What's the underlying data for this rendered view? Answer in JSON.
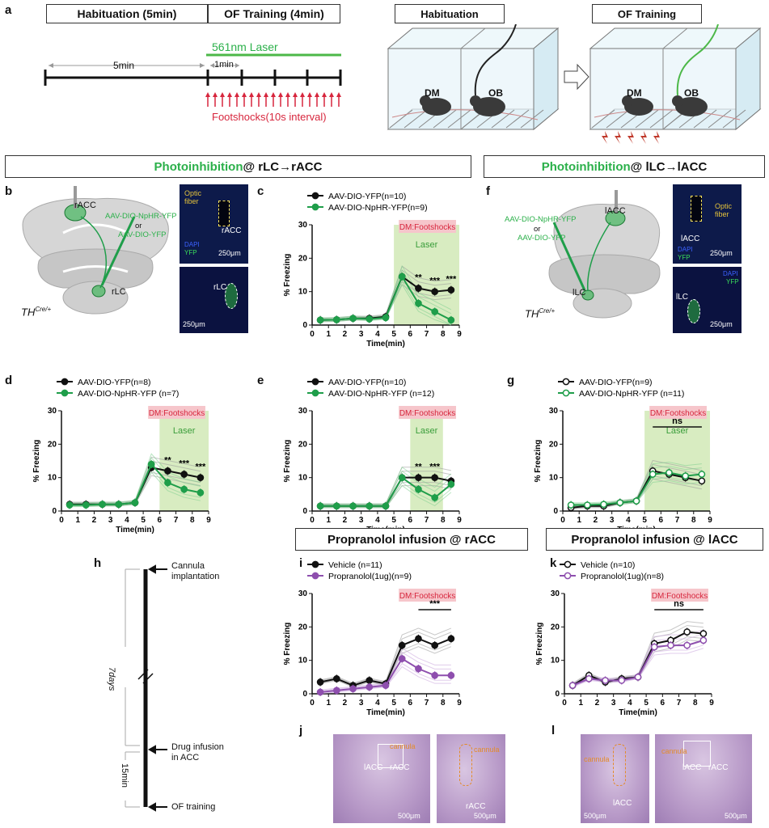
{
  "colors": {
    "black": "#111111",
    "green": "#1f9e4a",
    "laser_green": "#3cb44b",
    "red": "#d7263d",
    "purple": "#8e4fae",
    "laser_bg": "#d8ecc1",
    "shock_bg": "#f6c6cb"
  },
  "panel_a": {
    "label": "a",
    "hab_box": "Habituation (5min)",
    "of_box": "OF Training (4min)",
    "laser": "561nm Laser",
    "five_min": "5min",
    "one_min": "1min",
    "footshocks": "Footshocks(10s interval)",
    "hab_title": "Habituation",
    "of_title": "OF Training",
    "dm": "DM",
    "ob": "OB"
  },
  "section_left": {
    "prefix": "Photoinhibition",
    "suffix": "@ rLC→rACC"
  },
  "section_right": {
    "prefix": "Photoinhibition",
    "suffix": "@ lLC→lACC"
  },
  "panel_b": {
    "label": "b",
    "racc": "rACC",
    "virus1": "AAV-DIO-NpHR-YFP",
    "or": "or",
    "virus2": "AAV-DIO-YFP",
    "rlc": "rLC",
    "th": "TH",
    "th_sup": "Cre/+",
    "img1": {
      "fiber": "Optic fiber",
      "racc": "rACC",
      "dapi": "DAPI",
      "yfp": "YFP",
      "scale": "250μm"
    },
    "img2": {
      "rlc": "rLC",
      "scale": "250μm"
    }
  },
  "panel_f": {
    "label": "f",
    "lacc": "lACC",
    "virus1": "AAV-DIO-NpHR-YFP",
    "or": "or",
    "virus2": "AAV-DIO-YFP",
    "llc": "lLC",
    "th": "TH",
    "th_sup": "Cre/+",
    "img1": {
      "fiber": "Optic fiber",
      "lacc": "lACC",
      "dapi": "DAPI",
      "yfp": "YFP",
      "scale": "250μm"
    },
    "img2": {
      "llc": "lLC",
      "dapi": "DAPI",
      "yfp": "YFP",
      "scale": "250μm"
    }
  },
  "panel_h": {
    "label": "h",
    "cannula": "Cannula implantation",
    "seven_days": "7days",
    "drug": "Drug infusion in ACC",
    "fifteen": "15min",
    "of": "OF training"
  },
  "section_i": "Propranolol infusion @ rACC",
  "section_k": "Propranolol infusion @ lACC",
  "panel_j": {
    "label": "j",
    "lacc": "lACC",
    "racc": "rACC",
    "cannula": "cannula",
    "scale1": "500μm",
    "scale2": "500μm",
    "racc2": "rACC"
  },
  "panel_l": {
    "label": "l",
    "cannula": "cannula",
    "lacc": "lACC",
    "scale1": "500μm",
    "scale2": "500μm",
    "lacc2": "lACC",
    "racc": "rACC"
  },
  "chart_data": [
    {
      "id": "c",
      "type": "line",
      "ylabel": "% Freezing",
      "xlabel": "Time(min)",
      "ylim": [
        0,
        30
      ],
      "yticks": [
        0,
        10,
        20,
        30
      ],
      "xlim": [
        0,
        9
      ],
      "xticks": [
        0,
        1,
        2,
        3,
        4,
        5,
        6,
        7,
        8,
        9
      ],
      "shock_label": "DM:Footshocks",
      "laser_label": "Laser",
      "laser_range": [
        5,
        9
      ],
      "sig_labels": [
        {
          "x": 6.5,
          "text": "**"
        },
        {
          "x": 7.5,
          "text": "***"
        },
        {
          "x": 8.5,
          "text": "***"
        }
      ],
      "x": [
        0.5,
        1.5,
        2.5,
        3.5,
        4.5,
        5.5,
        6.5,
        7.5,
        8.5
      ],
      "series": [
        {
          "name": "AAV-DIO-YFP(n=10)",
          "style": "black-filled",
          "values": [
            1.5,
            1.6,
            2.0,
            2.0,
            2.5,
            14.5,
            11,
            10,
            10.5
          ]
        },
        {
          "name": "AAV-DIO-NpHR-YFP(n=9)",
          "style": "green-filled",
          "values": [
            1.5,
            1.6,
            2.0,
            1.8,
            2.2,
            14.5,
            6.5,
            4,
            1.5
          ]
        }
      ]
    },
    {
      "id": "d",
      "type": "line",
      "ylabel": "% Freezing",
      "xlabel": "Time(min)",
      "ylim": [
        0,
        30
      ],
      "yticks": [
        0,
        10,
        20,
        30
      ],
      "xlim": [
        0,
        9
      ],
      "xticks": [
        0,
        1,
        2,
        3,
        4,
        5,
        6,
        7,
        8,
        9
      ],
      "shock_label": "DM:Footshocks",
      "laser_label": "Laser",
      "laser_range": [
        6,
        9
      ],
      "sig_labels": [
        {
          "x": 6.5,
          "text": "**"
        },
        {
          "x": 7.5,
          "text": "***"
        },
        {
          "x": 8.5,
          "text": "***"
        }
      ],
      "x": [
        0.5,
        1.5,
        2.5,
        3.5,
        4.5,
        5.5,
        6.5,
        7.5,
        8.5
      ],
      "series": [
        {
          "name": "AAV-DIO-YFP(n=8)",
          "style": "black-filled",
          "values": [
            2,
            2,
            2,
            2,
            2.5,
            13,
            12,
            11,
            10
          ]
        },
        {
          "name": "AAV-DIO-NpHR-YFP (n=7)",
          "style": "green-filled",
          "values": [
            1.8,
            1.8,
            2,
            2,
            2.5,
            14,
            8.5,
            6.5,
            5.5
          ]
        }
      ]
    },
    {
      "id": "e",
      "type": "line",
      "ylabel": "% Freezing",
      "xlabel": "Time(min)",
      "ylim": [
        0,
        30
      ],
      "yticks": [
        0,
        10,
        20,
        30
      ],
      "xlim": [
        0,
        9
      ],
      "xticks": [
        0,
        1,
        2,
        3,
        4,
        5,
        6,
        7,
        8,
        9
      ],
      "shock_label": "DM:Footshocks",
      "laser_label": "Laser",
      "laser_range": [
        6,
        8
      ],
      "sig_labels": [
        {
          "x": 6.5,
          "text": "**"
        },
        {
          "x": 7.5,
          "text": "***"
        }
      ],
      "x": [
        0.5,
        1.5,
        2.5,
        3.5,
        4.5,
        5.5,
        6.5,
        7.5,
        8.5
      ],
      "series": [
        {
          "name": "AAV-DIO-YFP(n=10)",
          "style": "black-filled",
          "values": [
            1.5,
            1.5,
            1.5,
            1.5,
            1.5,
            10,
            10,
            10,
            9
          ]
        },
        {
          "name": "AAV-DIO-NpHR-YFP (n=12)",
          "style": "green-filled",
          "values": [
            1.5,
            1.5,
            1.5,
            1.5,
            1.5,
            10,
            6.5,
            4,
            8
          ]
        }
      ]
    },
    {
      "id": "g",
      "type": "line",
      "ylabel": "% Freezing",
      "xlabel": "Time(min)",
      "ylim": [
        0,
        30
      ],
      "yticks": [
        0,
        10,
        20,
        30
      ],
      "xlim": [
        0,
        9
      ],
      "xticks": [
        0,
        1,
        2,
        3,
        4,
        5,
        6,
        7,
        8,
        9
      ],
      "shock_label": "DM:Footshocks",
      "laser_label": "Laser",
      "laser_range": [
        5,
        9
      ],
      "sig_labels": [
        {
          "x": 7,
          "text": "ns"
        }
      ],
      "sig_bar": [
        5.5,
        8.5
      ],
      "x": [
        0.5,
        1.5,
        2.5,
        3.5,
        4.5,
        5.5,
        6.5,
        7.5,
        8.5
      ],
      "series": [
        {
          "name": "AAV-DIO-YFP(n=9)",
          "style": "black-open",
          "values": [
            1,
            1.5,
            1.5,
            2.5,
            3,
            12,
            11,
            10,
            9
          ]
        },
        {
          "name": "AAV-DIO-NpHR-YFP (n=11)",
          "style": "green-open",
          "values": [
            1.8,
            1.8,
            2,
            2.5,
            3,
            11,
            11.5,
            10.5,
            11
          ]
        }
      ]
    },
    {
      "id": "i",
      "type": "line",
      "ylabel": "% Freezing",
      "xlabel": "Time(min)",
      "ylim": [
        0,
        30
      ],
      "yticks": [
        0,
        10,
        20,
        30
      ],
      "xlim": [
        0,
        9
      ],
      "xticks": [
        0,
        1,
        2,
        3,
        4,
        5,
        6,
        7,
        8,
        9
      ],
      "shock_label": "DM:Footshocks",
      "laser_label": "",
      "laser_range": null,
      "sig_labels": [
        {
          "x": 7.5,
          "text": "***"
        }
      ],
      "sig_bar": [
        6.5,
        8.5
      ],
      "x": [
        0.5,
        1.5,
        2.5,
        3.5,
        4.5,
        5.5,
        6.5,
        7.5,
        8.5
      ],
      "series": [
        {
          "name": "Vehicle (n=11)",
          "style": "black-filled",
          "values": [
            3.5,
            4.5,
            2.5,
            4,
            3,
            14.5,
            16.5,
            14.5,
            16.5
          ]
        },
        {
          "name": "Propranolol(1ug)(n=9)",
          "style": "purple-filled",
          "values": [
            0.5,
            1,
            1.5,
            2,
            2.5,
            10.5,
            7.5,
            5.5,
            5.5
          ]
        }
      ]
    },
    {
      "id": "k",
      "type": "line",
      "ylabel": "% Freezing",
      "xlabel": "Time(min)",
      "ylim": [
        0,
        30
      ],
      "yticks": [
        0,
        10,
        20,
        30
      ],
      "xlim": [
        0,
        9
      ],
      "xticks": [
        0,
        1,
        2,
        3,
        4,
        5,
        6,
        7,
        8,
        9
      ],
      "shock_label": "DM:Footshocks",
      "laser_label": "",
      "laser_range": null,
      "sig_labels": [
        {
          "x": 7,
          "text": "ns"
        }
      ],
      "sig_bar": [
        5.5,
        8.5
      ],
      "x": [
        0.5,
        1.5,
        2.5,
        3.5,
        4.5,
        5.5,
        6.5,
        7.5,
        8.5
      ],
      "series": [
        {
          "name": "Vehicle (n=10)",
          "style": "black-open",
          "values": [
            2.5,
            5.5,
            3.5,
            4.5,
            5,
            15,
            16,
            18.5,
            18
          ]
        },
        {
          "name": "Propranolol(1ug)(n=8)",
          "style": "purple-open",
          "values": [
            2.5,
            4.5,
            4,
            4,
            5,
            14,
            14.5,
            14.5,
            16
          ]
        }
      ]
    }
  ]
}
